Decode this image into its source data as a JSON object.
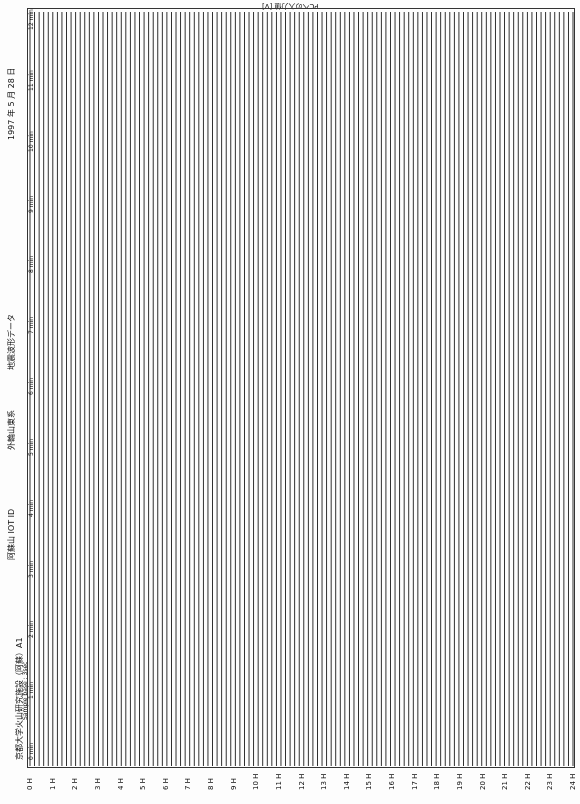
{
  "header": {
    "top_caption": "PCへの入力値 [V]",
    "date_line": "1997 年 5 月 28 日",
    "institution": "京都大学火山研究施設（阿蘇）A1",
    "station": "阿蘇山 IOT ID",
    "component": "外輪山東系",
    "data_type": "地震波形データ",
    "sample_note": "Sample base : 3sec"
  },
  "minute_labels": [
    "0 min",
    "1 min",
    "2 min",
    "3 min",
    "4 min",
    "5 min",
    "6 min",
    "7 min",
    "8 min",
    "9 min",
    "10 min",
    "11 min",
    "12 min"
  ],
  "hour_labels": [
    "0 H",
    "1 H",
    "2 H",
    "3 H",
    "4 H",
    "5 H",
    "6 H",
    "7 H",
    "8 H",
    "9 H",
    "10 H",
    "11 H",
    "12 H",
    "13 H",
    "14 H",
    "15 H",
    "16 H",
    "17 H",
    "18 H",
    "19 H",
    "20 H",
    "21 H",
    "22 H",
    "23 H",
    "24 H"
  ],
  "traces": {
    "count": 120,
    "color": "#1a1a1a"
  }
}
